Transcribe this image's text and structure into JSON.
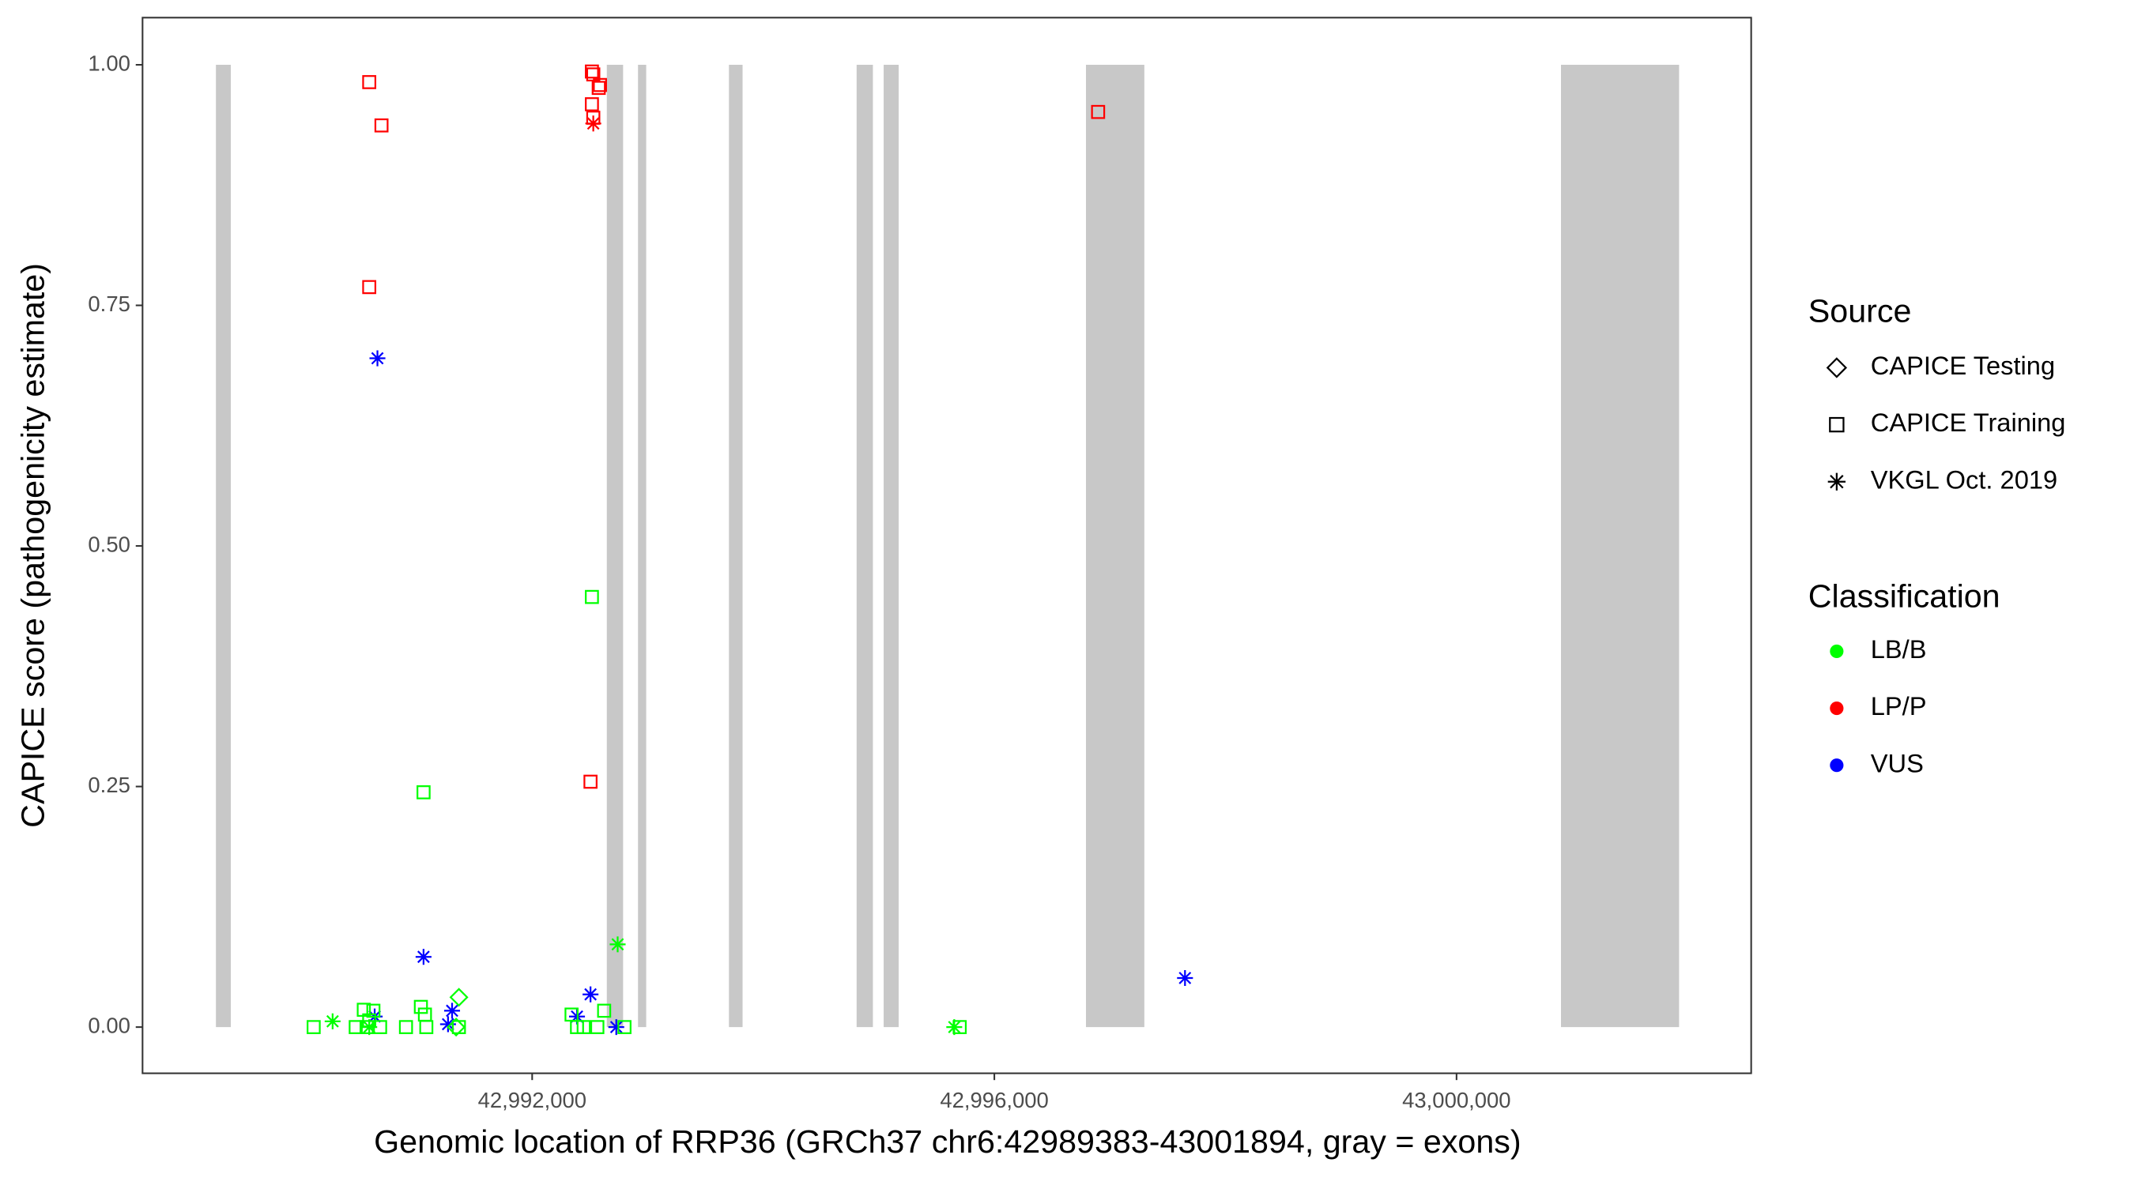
{
  "chart_data": {
    "type": "scatter",
    "x_label": "Genomic location of RRP36 (GRCh37 chr6:42989383-43001894, gray = exons)",
    "y_label": "CAPICE score (pathogenicity estimate)",
    "xlim": [
      42988628,
      43002550
    ],
    "ylim": [
      -0.048,
      1.049
    ],
    "xticks": [
      {
        "value": 42992000,
        "label": "42,992,000"
      },
      {
        "value": 42996000,
        "label": "42,996,000"
      },
      {
        "value": 43000000,
        "label": "43,000,000"
      }
    ],
    "yticks": [
      {
        "value": 0,
        "label": "0.00"
      },
      {
        "value": 0.25,
        "label": "0.25"
      },
      {
        "value": 0.5,
        "label": "0.50"
      },
      {
        "value": 0.75,
        "label": "0.75"
      },
      {
        "value": 1,
        "label": "1.00"
      }
    ],
    "exon_color": "#c8c8c8",
    "exons": [
      [
        42989263,
        42989392
      ],
      [
        42992646,
        42992787
      ],
      [
        42992916,
        42992987
      ],
      [
        42993703,
        42993821
      ],
      [
        42994808,
        42994949
      ],
      [
        42995042,
        42995172
      ],
      [
        42996793,
        42997298
      ],
      [
        43000904,
        43001926
      ]
    ],
    "legend_source": {
      "title": "Source",
      "items": [
        {
          "label": "CAPICE Testing",
          "shape": "diamond"
        },
        {
          "label": "CAPICE Training",
          "shape": "square"
        },
        {
          "label": "VKGL Oct. 2019",
          "shape": "star"
        }
      ]
    },
    "legend_classification": {
      "title": "Classification",
      "items": [
        {
          "label": "LB/B",
          "color": "#00ff00"
        },
        {
          "label": "LP/P",
          "color": "#ff0000"
        },
        {
          "label": "VUS",
          "color": "#0000ff"
        }
      ]
    },
    "series": [
      {
        "source": 1,
        "classification": 1,
        "x": [
          42990590,
          42990696,
          42990590,
          42992505,
          42992529,
          42992517,
          42992587,
          42992576,
          42992517,
          42992529,
          42996898
        ],
        "y": [
          0.982,
          0.937,
          0.769,
          0.255,
          0.99,
          0.993,
          0.979,
          0.976,
          0.959,
          0.945,
          0.951
        ]
      },
      {
        "source": 2,
        "classification": 1,
        "x": [
          42992529
        ],
        "y": [
          0.939
        ]
      },
      {
        "source": 2,
        "classification": 2,
        "x": [
          42990661,
          42991060,
          42990637,
          42991307,
          42991272,
          42992505,
          42992388,
          42992728,
          42997650
        ],
        "y": [
          0.695,
          0.073,
          0.011,
          0.017,
          0.003,
          0.034,
          0.011,
          0,
          0.051
        ]
      },
      {
        "source": 1,
        "classification": 0,
        "x": [
          42992517,
          42991060,
          42990109,
          42990473,
          42990543,
          42990590,
          42990684,
          42990567,
          42990626,
          42990908,
          42991037,
          42991072,
          42991084,
          42991366,
          42992341,
          42992388,
          42992446,
          42992564,
          42992623,
          42992799,
          42995700
        ],
        "y": [
          0.447,
          0.244,
          0,
          0,
          0.018,
          0.007,
          0,
          0,
          0.017,
          0,
          0.021,
          0.013,
          0,
          0,
          0.013,
          0,
          0,
          0,
          0.017,
          0,
          0
        ]
      },
      {
        "source": 2,
        "classification": 0,
        "x": [
          42990273,
          42992740,
          42995653,
          42990590
        ],
        "y": [
          0.006,
          0.086,
          0,
          0
        ]
      },
      {
        "source": 0,
        "classification": 0,
        "x": [
          42991366,
          42991342
        ],
        "y": [
          0.031,
          0
        ]
      }
    ]
  }
}
